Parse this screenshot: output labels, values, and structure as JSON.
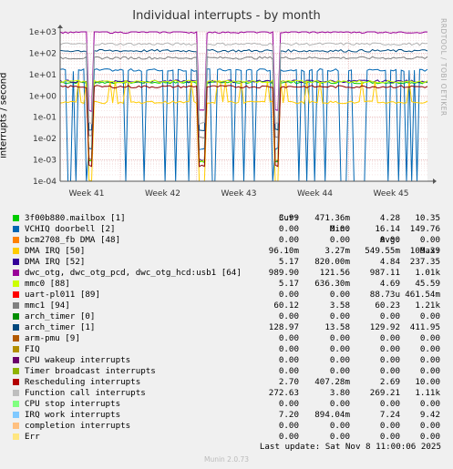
{
  "title": "Individual interrupts - by month",
  "side_label": "RRDTOOL / TOBI OETIKER",
  "ylabel": "interrupts / second",
  "chart_data": {
    "type": "line",
    "title": "Individual interrupts - by month",
    "ylabel": "interrupts / second",
    "yscale": "log",
    "ylim": [
      0.0001,
      1000
    ],
    "yticks": [
      "1e+03",
      "1e+02",
      "1e+01",
      "1e+00",
      "1e-01",
      "1e-02",
      "1e-03",
      "1e-04"
    ],
    "x_ticks": [
      "Week 41",
      "Week 42",
      "Week 43",
      "Week 44",
      "Week 45"
    ],
    "grid": true,
    "series": [
      {
        "name": "3f00b880.mailbox [1]",
        "color": "#00cc00",
        "value": 4.28
      },
      {
        "name": "VCHIQ doorbell [2]",
        "color": "#0066b3",
        "value": 16.14
      },
      {
        "name": "bcm2708_fb DMA [48]",
        "color": "#ff8000",
        "value": 0.0
      },
      {
        "name": "DMA IRQ [50]",
        "color": "#ffcc00",
        "value": 0.5
      },
      {
        "name": "DMA IRQ [52]",
        "color": "#330099",
        "value": 4.84
      },
      {
        "name": "dwc_otg, dwc_otg_pcd, dwc_otg_hcd:usb1 [64]",
        "color": "#990099",
        "value": 987.11
      },
      {
        "name": "mmc0 [88]",
        "color": "#ccff00",
        "value": 4.69
      },
      {
        "name": "uart-pl011 [89]",
        "color": "#ff0000",
        "value": 0.0
      },
      {
        "name": "mmc1 [94]",
        "color": "#808080",
        "value": 60.23
      },
      {
        "name": "arch_timer [0]",
        "color": "#008f00",
        "value": 0.0
      },
      {
        "name": "arch_timer [1]",
        "color": "#00487d",
        "value": 129.92
      },
      {
        "name": "Function call interrupts",
        "color": "#b3b3b3",
        "value": 269.21
      },
      {
        "name": "Rescheduling interrupts",
        "color": "#8f0000",
        "value": 2.69
      }
    ]
  },
  "legend": {
    "headers": [
      "Cur:",
      "Min:",
      "Avg:",
      "Max:"
    ],
    "rows": [
      {
        "color": "#00cc00",
        "name": "3f00b880.mailbox [1]",
        "cur": "3.99",
        "min": "471.36m",
        "avg": "4.28",
        "max": "10.35"
      },
      {
        "color": "#0066b3",
        "name": "VCHIQ doorbell [2]",
        "cur": "0.00",
        "min": "0.00",
        "avg": "16.14",
        "max": "149.76"
      },
      {
        "color": "#ff8000",
        "name": "bcm2708_fb DMA [48]",
        "cur": "0.00",
        "min": "0.00",
        "avg": "0.00",
        "max": "0.00"
      },
      {
        "color": "#ffcc00",
        "name": "DMA IRQ [50]",
        "cur": "96.10m",
        "min": "3.27m",
        "avg": "549.55m",
        "max": "109.39"
      },
      {
        "color": "#330099",
        "name": "DMA IRQ [52]",
        "cur": "5.17",
        "min": "820.00m",
        "avg": "4.84",
        "max": "237.35"
      },
      {
        "color": "#990099",
        "name": "dwc_otg, dwc_otg_pcd, dwc_otg_hcd:usb1 [64]",
        "cur": "989.90",
        "min": "121.56",
        "avg": "987.11",
        "max": "1.01k"
      },
      {
        "color": "#ccff00",
        "name": "mmc0 [88]",
        "cur": "5.17",
        "min": "636.30m",
        "avg": "4.69",
        "max": "45.59"
      },
      {
        "color": "#ff0000",
        "name": "uart-pl011 [89]",
        "cur": "0.00",
        "min": "0.00",
        "avg": "88.73u",
        "max": "461.54m"
      },
      {
        "color": "#808080",
        "name": "mmc1 [94]",
        "cur": "60.12",
        "min": "3.58",
        "avg": "60.23",
        "max": "1.21k"
      },
      {
        "color": "#008f00",
        "name": "arch_timer [0]",
        "cur": "0.00",
        "min": "0.00",
        "avg": "0.00",
        "max": "0.00"
      },
      {
        "color": "#00487d",
        "name": "arch_timer [1]",
        "cur": "128.97",
        "min": "13.58",
        "avg": "129.92",
        "max": "411.95"
      },
      {
        "color": "#b35a00",
        "name": "arm-pmu [9]",
        "cur": "0.00",
        "min": "0.00",
        "avg": "0.00",
        "max": "0.00"
      },
      {
        "color": "#b38f00",
        "name": "FIQ",
        "cur": "0.00",
        "min": "0.00",
        "avg": "0.00",
        "max": "0.00"
      },
      {
        "color": "#6b006b",
        "name": "CPU wakeup interrupts",
        "cur": "0.00",
        "min": "0.00",
        "avg": "0.00",
        "max": "0.00"
      },
      {
        "color": "#8fb300",
        "name": "Timer broadcast interrupts",
        "cur": "0.00",
        "min": "0.00",
        "avg": "0.00",
        "max": "0.00"
      },
      {
        "color": "#b30000",
        "name": "Rescheduling interrupts",
        "cur": "2.70",
        "min": "407.28m",
        "avg": "2.69",
        "max": "10.00"
      },
      {
        "color": "#bebebe",
        "name": "Function call interrupts",
        "cur": "272.63",
        "min": "3.80",
        "avg": "269.21",
        "max": "1.11k"
      },
      {
        "color": "#80ff80",
        "name": "CPU stop interrupts",
        "cur": "0.00",
        "min": "0.00",
        "avg": "0.00",
        "max": "0.00"
      },
      {
        "color": "#80c9ff",
        "name": "IRQ work interrupts",
        "cur": "7.20",
        "min": "894.04m",
        "avg": "7.24",
        "max": "9.42"
      },
      {
        "color": "#ffc080",
        "name": "completion interrupts",
        "cur": "0.00",
        "min": "0.00",
        "avg": "0.00",
        "max": "0.00"
      },
      {
        "color": "#ffe680",
        "name": "Err",
        "cur": "0.00",
        "min": "0.00",
        "avg": "0.00",
        "max": "0.00"
      }
    ]
  },
  "footer": "Last update: Sat Nov  8 11:00:06 2025",
  "munin": "Munin 2.0.73"
}
